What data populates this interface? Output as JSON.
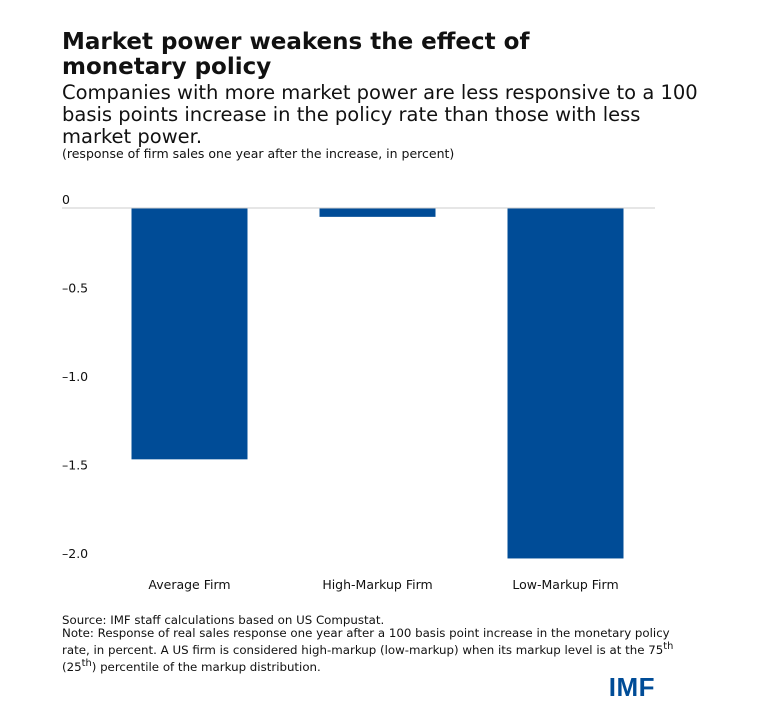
{
  "header": {
    "title": "Market power weakens the effect of monetary policy",
    "subtitle": "Companies with more market power are less responsive to a 100 basis points increase in the policy rate than those with less market power.",
    "units_note": "(response of firm sales one year after the increase, in percent)"
  },
  "chart_data": {
    "type": "bar",
    "categories": [
      "Average Firm",
      "High-Markup Firm",
      "Low-Markup Firm"
    ],
    "values": [
      -1.42,
      -0.05,
      -1.98
    ],
    "yticks": [
      0,
      -0.5,
      -1.0,
      -1.5,
      -2.0
    ],
    "ytick_labels": [
      "0",
      "–0.5",
      "–1.0",
      "–1.5",
      "–2.0"
    ],
    "ylim": [
      -2.0,
      0
    ],
    "grid": false,
    "bar_color": "#004c97"
  },
  "footer": {
    "source": "Source: IMF staff calculations based on US Compustat.",
    "note_before_75": "Note: Response of real sales response one year after a 100 basis point increase in the monetary policy rate, in percent. A US firm is considered high-markup (low-markup) when its markup level is at the 75",
    "sup_75": "th",
    "note_mid": " (25",
    "sup_25": "th",
    "note_after": ") percentile of the markup distribution.",
    "logo_text": "IMF"
  },
  "colors": {
    "accent": "#004c97",
    "text": "#111111",
    "axis_line": "#cccccc"
  }
}
